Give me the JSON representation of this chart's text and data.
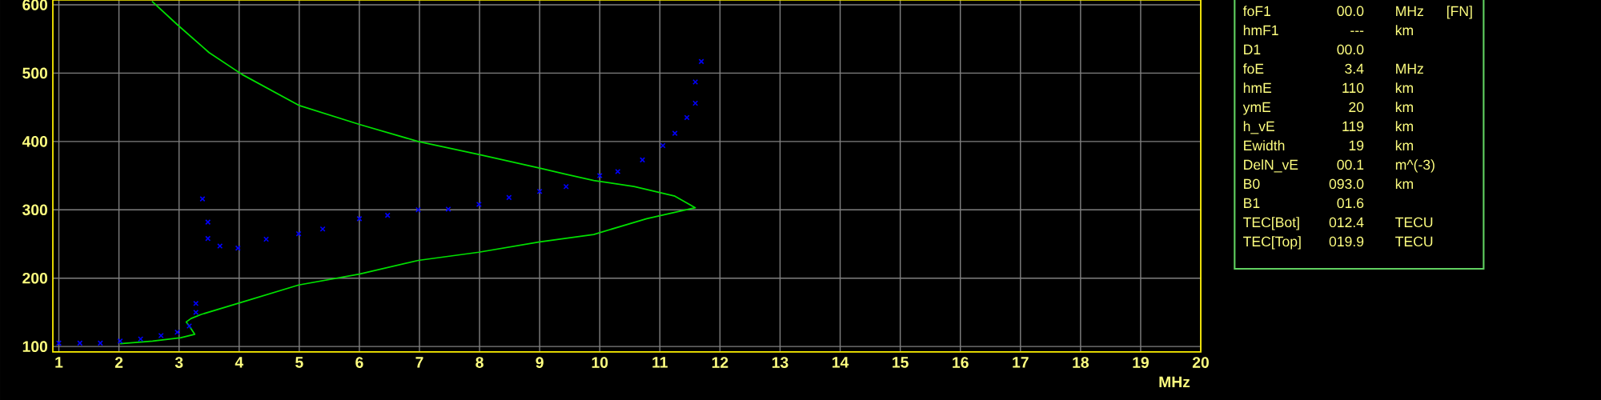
{
  "chart_data": [
    {
      "type": "line",
      "xlabel": "MHz",
      "xlim": [
        0.9,
        20
      ],
      "ylim": [
        92,
        607
      ],
      "xticks": [
        1,
        2,
        3,
        4,
        5,
        6,
        7,
        8,
        9,
        10,
        11,
        12,
        13,
        14,
        15,
        16,
        17,
        18,
        19,
        20
      ],
      "yticks": [
        100,
        200,
        300,
        400,
        500,
        600
      ],
      "grid": true,
      "series": [
        {
          "type": "line",
          "color": "#00e000",
          "line_style": "solid",
          "x": [
            2.02,
            2.56,
            3.03,
            3.26,
            3.17,
            3.12,
            3.2,
            3.37,
            4.05,
            4.99,
            6.0,
            6.98,
            7.99,
            9.0,
            9.9,
            10.78,
            11.59,
            11.25,
            10.57,
            9.9,
            9.44,
            9.0,
            7.99,
            6.98,
            6.0,
            4.99,
            4.05,
            3.5,
            2.97,
            2.55
          ],
          "values": [
            104,
            108,
            113,
            118,
            130,
            136,
            141,
            147,
            165,
            190,
            206,
            226,
            238,
            253,
            264,
            287,
            303,
            320,
            334,
            343,
            352,
            361,
            381,
            400,
            425,
            453,
            498,
            530,
            571,
            605
          ]
        },
        {
          "type": "scatter",
          "color": "#0000ff",
          "marker": "cross",
          "x": [
            1.0,
            1.35,
            1.69,
            2.02,
            2.36,
            2.7,
            2.97,
            3.17,
            3.28,
            3.28,
            3.39,
            3.48,
            3.48,
            3.68,
            3.98,
            4.45,
            4.99,
            5.39,
            6.0,
            6.47,
            6.98,
            7.48,
            7.99,
            8.49,
            9.0,
            9.44,
            10.0,
            10.3,
            10.71,
            11.05,
            11.25,
            11.45,
            11.59,
            11.59,
            11.69
          ],
          "values": [
            105,
            105,
            105,
            108,
            111,
            116,
            121,
            130,
            150,
            163,
            316,
            282,
            258,
            247,
            244,
            257,
            265,
            272,
            287,
            292,
            300,
            301,
            308,
            318,
            327,
            334,
            350,
            356,
            373,
            394,
            412,
            435,
            456,
            487,
            517
          ]
        }
      ]
    },
    {
      "type": "other",
      "categories": [
        "foF1",
        "hmF1",
        "D1",
        "foE",
        "hmE",
        "ymE",
        "h_vE",
        "Ewidth",
        "DelN_vE",
        "B0",
        "B1",
        "TEC[Bot]",
        "TEC[Top]"
      ],
      "value_labels": [
        "00.0",
        "---",
        "00.0",
        "3.4",
        "110",
        "20",
        "119",
        "19",
        "00.1",
        "093.0",
        "01.6",
        "012.4",
        "019.9"
      ],
      "y2_categories": [
        "MHz",
        "km",
        null,
        "MHz",
        "km",
        "km",
        "km",
        "km",
        "m^(-3)",
        "km",
        null,
        "TECU",
        "TECU"
      ],
      "annotations": [
        "[FN]"
      ]
    }
  ]
}
